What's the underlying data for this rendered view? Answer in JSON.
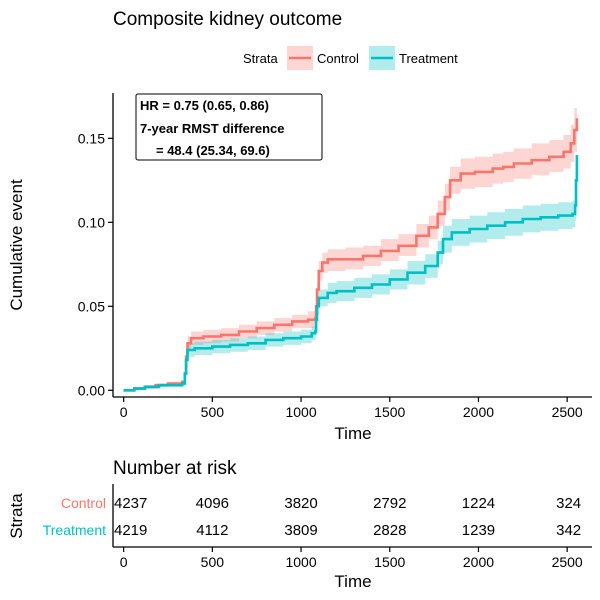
{
  "chart_data": [
    {
      "type": "line",
      "subtype": "kaplan-meier-cumulative-incidence",
      "title": "Composite kidney outcome",
      "xlabel": "Time",
      "ylabel": "Cumulative event",
      "xlim": [
        -60,
        2640
      ],
      "ylim": [
        -0.004,
        0.177
      ],
      "x_ticks": [
        0,
        500,
        1000,
        1500,
        2000,
        2500
      ],
      "y_ticks": [
        0.0,
        0.05,
        0.1,
        0.15
      ],
      "y_tick_labels": [
        "0.00",
        "0.05",
        "0.10",
        "0.15"
      ],
      "grid": false,
      "confidence_band": true,
      "legend": {
        "title": "Strata",
        "placement": "top",
        "entries": [
          "Control",
          "Treatment"
        ]
      },
      "annotation": {
        "lines": [
          "HR = 0.75 (0.65, 0.86)",
          "7-year RMST difference",
          "= 48.4 (25.34, 69.6)"
        ]
      },
      "series": [
        {
          "name": "Control",
          "color": "#F8766D",
          "band_color": "#F8766D",
          "points": [
            [
              0,
              0.0
            ],
            [
              60,
              0.001
            ],
            [
              120,
              0.002
            ],
            [
              180,
              0.003
            ],
            [
              250,
              0.004
            ],
            [
              330,
              0.005
            ],
            [
              345,
              0.01
            ],
            [
              352,
              0.02
            ],
            [
              360,
              0.028
            ],
            [
              380,
              0.031
            ],
            [
              450,
              0.032
            ],
            [
              550,
              0.033
            ],
            [
              650,
              0.035
            ],
            [
              750,
              0.037
            ],
            [
              850,
              0.039
            ],
            [
              950,
              0.041
            ],
            [
              1040,
              0.042
            ],
            [
              1080,
              0.043
            ],
            [
              1085,
              0.05
            ],
            [
              1090,
              0.06
            ],
            [
              1100,
              0.071
            ],
            [
              1120,
              0.076
            ],
            [
              1150,
              0.078
            ],
            [
              1250,
              0.078
            ],
            [
              1350,
              0.08
            ],
            [
              1450,
              0.083
            ],
            [
              1550,
              0.086
            ],
            [
              1650,
              0.092
            ],
            [
              1720,
              0.097
            ],
            [
              1770,
              0.105
            ],
            [
              1810,
              0.115
            ],
            [
              1840,
              0.125
            ],
            [
              1900,
              0.129
            ],
            [
              1980,
              0.13
            ],
            [
              2080,
              0.132
            ],
            [
              2140,
              0.133
            ],
            [
              2200,
              0.135
            ],
            [
              2300,
              0.137
            ],
            [
              2400,
              0.139
            ],
            [
              2480,
              0.142
            ],
            [
              2520,
              0.147
            ],
            [
              2540,
              0.155
            ],
            [
              2555,
              0.162
            ]
          ],
          "lower": [
            [
              0,
              0.0
            ],
            [
              60,
              0.0
            ],
            [
              120,
              0.001
            ],
            [
              180,
              0.002
            ],
            [
              250,
              0.003
            ],
            [
              330,
              0.004
            ],
            [
              345,
              0.008
            ],
            [
              352,
              0.017
            ],
            [
              360,
              0.024
            ],
            [
              380,
              0.027
            ],
            [
              450,
              0.028
            ],
            [
              550,
              0.029
            ],
            [
              650,
              0.031
            ],
            [
              750,
              0.033
            ],
            [
              850,
              0.035
            ],
            [
              950,
              0.037
            ],
            [
              1040,
              0.037
            ],
            [
              1080,
              0.038
            ],
            [
              1085,
              0.045
            ],
            [
              1090,
              0.055
            ],
            [
              1100,
              0.065
            ],
            [
              1120,
              0.07
            ],
            [
              1150,
              0.071
            ],
            [
              1250,
              0.072
            ],
            [
              1350,
              0.074
            ],
            [
              1450,
              0.077
            ],
            [
              1550,
              0.08
            ],
            [
              1650,
              0.085
            ],
            [
              1720,
              0.09
            ],
            [
              1770,
              0.098
            ],
            [
              1810,
              0.107
            ],
            [
              1840,
              0.117
            ],
            [
              1900,
              0.12
            ],
            [
              1980,
              0.121
            ],
            [
              2080,
              0.123
            ],
            [
              2140,
              0.124
            ],
            [
              2200,
              0.126
            ],
            [
              2300,
              0.128
            ],
            [
              2400,
              0.13
            ],
            [
              2480,
              0.132
            ],
            [
              2520,
              0.136
            ],
            [
              2540,
              0.142
            ],
            [
              2555,
              0.148
            ]
          ],
          "upper": [
            [
              0,
              0.0
            ],
            [
              60,
              0.002
            ],
            [
              120,
              0.003
            ],
            [
              180,
              0.004
            ],
            [
              250,
              0.005
            ],
            [
              330,
              0.006
            ],
            [
              345,
              0.012
            ],
            [
              352,
              0.023
            ],
            [
              360,
              0.032
            ],
            [
              380,
              0.035
            ],
            [
              450,
              0.036
            ],
            [
              550,
              0.037
            ],
            [
              650,
              0.039
            ],
            [
              750,
              0.041
            ],
            [
              850,
              0.043
            ],
            [
              950,
              0.045
            ],
            [
              1040,
              0.047
            ],
            [
              1080,
              0.048
            ],
            [
              1085,
              0.055
            ],
            [
              1090,
              0.065
            ],
            [
              1100,
              0.077
            ],
            [
              1120,
              0.082
            ],
            [
              1150,
              0.084
            ],
            [
              1250,
              0.085
            ],
            [
              1350,
              0.086
            ],
            [
              1450,
              0.09
            ],
            [
              1550,
              0.093
            ],
            [
              1650,
              0.099
            ],
            [
              1720,
              0.104
            ],
            [
              1770,
              0.113
            ],
            [
              1810,
              0.123
            ],
            [
              1840,
              0.133
            ],
            [
              1900,
              0.138
            ],
            [
              1980,
              0.139
            ],
            [
              2080,
              0.141
            ],
            [
              2140,
              0.142
            ],
            [
              2200,
              0.144
            ],
            [
              2300,
              0.147
            ],
            [
              2400,
              0.149
            ],
            [
              2480,
              0.152
            ],
            [
              2520,
              0.158
            ],
            [
              2540,
              0.168
            ],
            [
              2555,
              0.178
            ]
          ]
        },
        {
          "name": "Treatment",
          "color": "#00BFC4",
          "band_color": "#00BFC4",
          "points": [
            [
              0,
              0.0
            ],
            [
              60,
              0.001
            ],
            [
              120,
              0.002
            ],
            [
              200,
              0.003
            ],
            [
              280,
              0.003
            ],
            [
              330,
              0.004
            ],
            [
              345,
              0.01
            ],
            [
              352,
              0.018
            ],
            [
              360,
              0.024
            ],
            [
              400,
              0.025
            ],
            [
              500,
              0.026
            ],
            [
              600,
              0.027
            ],
            [
              700,
              0.028
            ],
            [
              800,
              0.03
            ],
            [
              900,
              0.031
            ],
            [
              1000,
              0.032
            ],
            [
              1060,
              0.034
            ],
            [
              1080,
              0.035
            ],
            [
              1085,
              0.042
            ],
            [
              1090,
              0.05
            ],
            [
              1100,
              0.055
            ],
            [
              1150,
              0.058
            ],
            [
              1200,
              0.059
            ],
            [
              1300,
              0.061
            ],
            [
              1400,
              0.063
            ],
            [
              1500,
              0.066
            ],
            [
              1600,
              0.07
            ],
            [
              1700,
              0.074
            ],
            [
              1770,
              0.082
            ],
            [
              1800,
              0.09
            ],
            [
              1850,
              0.094
            ],
            [
              1950,
              0.096
            ],
            [
              2050,
              0.098
            ],
            [
              2150,
              0.1
            ],
            [
              2250,
              0.102
            ],
            [
              2350,
              0.103
            ],
            [
              2450,
              0.104
            ],
            [
              2530,
              0.105
            ],
            [
              2545,
              0.11
            ],
            [
              2550,
              0.125
            ],
            [
              2555,
              0.14
            ]
          ],
          "lower": [
            [
              0,
              0.0
            ],
            [
              60,
              0.0
            ],
            [
              120,
              0.001
            ],
            [
              200,
              0.002
            ],
            [
              280,
              0.002
            ],
            [
              330,
              0.003
            ],
            [
              345,
              0.007
            ],
            [
              352,
              0.015
            ],
            [
              360,
              0.02
            ],
            [
              400,
              0.021
            ],
            [
              500,
              0.022
            ],
            [
              600,
              0.023
            ],
            [
              700,
              0.024
            ],
            [
              800,
              0.026
            ],
            [
              900,
              0.027
            ],
            [
              1000,
              0.028
            ],
            [
              1060,
              0.03
            ],
            [
              1080,
              0.031
            ],
            [
              1085,
              0.037
            ],
            [
              1090,
              0.045
            ],
            [
              1100,
              0.05
            ],
            [
              1150,
              0.052
            ],
            [
              1200,
              0.053
            ],
            [
              1300,
              0.055
            ],
            [
              1400,
              0.057
            ],
            [
              1500,
              0.06
            ],
            [
              1600,
              0.063
            ],
            [
              1700,
              0.067
            ],
            [
              1770,
              0.075
            ],
            [
              1800,
              0.082
            ],
            [
              1850,
              0.086
            ],
            [
              1950,
              0.088
            ],
            [
              2050,
              0.09
            ],
            [
              2150,
              0.092
            ],
            [
              2250,
              0.094
            ],
            [
              2350,
              0.095
            ],
            [
              2450,
              0.096
            ],
            [
              2530,
              0.097
            ],
            [
              2545,
              0.101
            ],
            [
              2550,
              0.112
            ],
            [
              2555,
              0.125
            ]
          ],
          "upper": [
            [
              0,
              0.0
            ],
            [
              60,
              0.002
            ],
            [
              120,
              0.003
            ],
            [
              200,
              0.004
            ],
            [
              280,
              0.004
            ],
            [
              330,
              0.005
            ],
            [
              345,
              0.013
            ],
            [
              352,
              0.021
            ],
            [
              360,
              0.028
            ],
            [
              400,
              0.029
            ],
            [
              500,
              0.03
            ],
            [
              600,
              0.031
            ],
            [
              700,
              0.032
            ],
            [
              800,
              0.034
            ],
            [
              900,
              0.035
            ],
            [
              1000,
              0.036
            ],
            [
              1060,
              0.038
            ],
            [
              1080,
              0.039
            ],
            [
              1085,
              0.047
            ],
            [
              1090,
              0.055
            ],
            [
              1100,
              0.06
            ],
            [
              1150,
              0.064
            ],
            [
              1200,
              0.065
            ],
            [
              1300,
              0.067
            ],
            [
              1400,
              0.069
            ],
            [
              1500,
              0.072
            ],
            [
              1600,
              0.077
            ],
            [
              1700,
              0.081
            ],
            [
              1770,
              0.089
            ],
            [
              1800,
              0.098
            ],
            [
              1850,
              0.102
            ],
            [
              1950,
              0.104
            ],
            [
              2050,
              0.106
            ],
            [
              2150,
              0.108
            ],
            [
              2250,
              0.11
            ],
            [
              2350,
              0.111
            ],
            [
              2450,
              0.112
            ],
            [
              2530,
              0.113
            ],
            [
              2545,
              0.119
            ],
            [
              2550,
              0.138
            ],
            [
              2555,
              0.155
            ]
          ]
        }
      ]
    },
    {
      "type": "table",
      "title": "Number at risk",
      "xlabel": "Time",
      "ylabel": "Strata",
      "xlim": [
        -60,
        2640
      ],
      "x_ticks": [
        0,
        500,
        1000,
        1500,
        2000,
        2500
      ],
      "times": [
        0,
        500,
        1000,
        1500,
        2000,
        2500
      ],
      "rows": [
        {
          "name": "Control",
          "color": "#F8766D",
          "values": [
            4237,
            4096,
            3820,
            2792,
            1224,
            324
          ]
        },
        {
          "name": "Treatment",
          "color": "#00BFC4",
          "values": [
            4219,
            4112,
            3809,
            2828,
            1239,
            342
          ]
        }
      ]
    }
  ]
}
